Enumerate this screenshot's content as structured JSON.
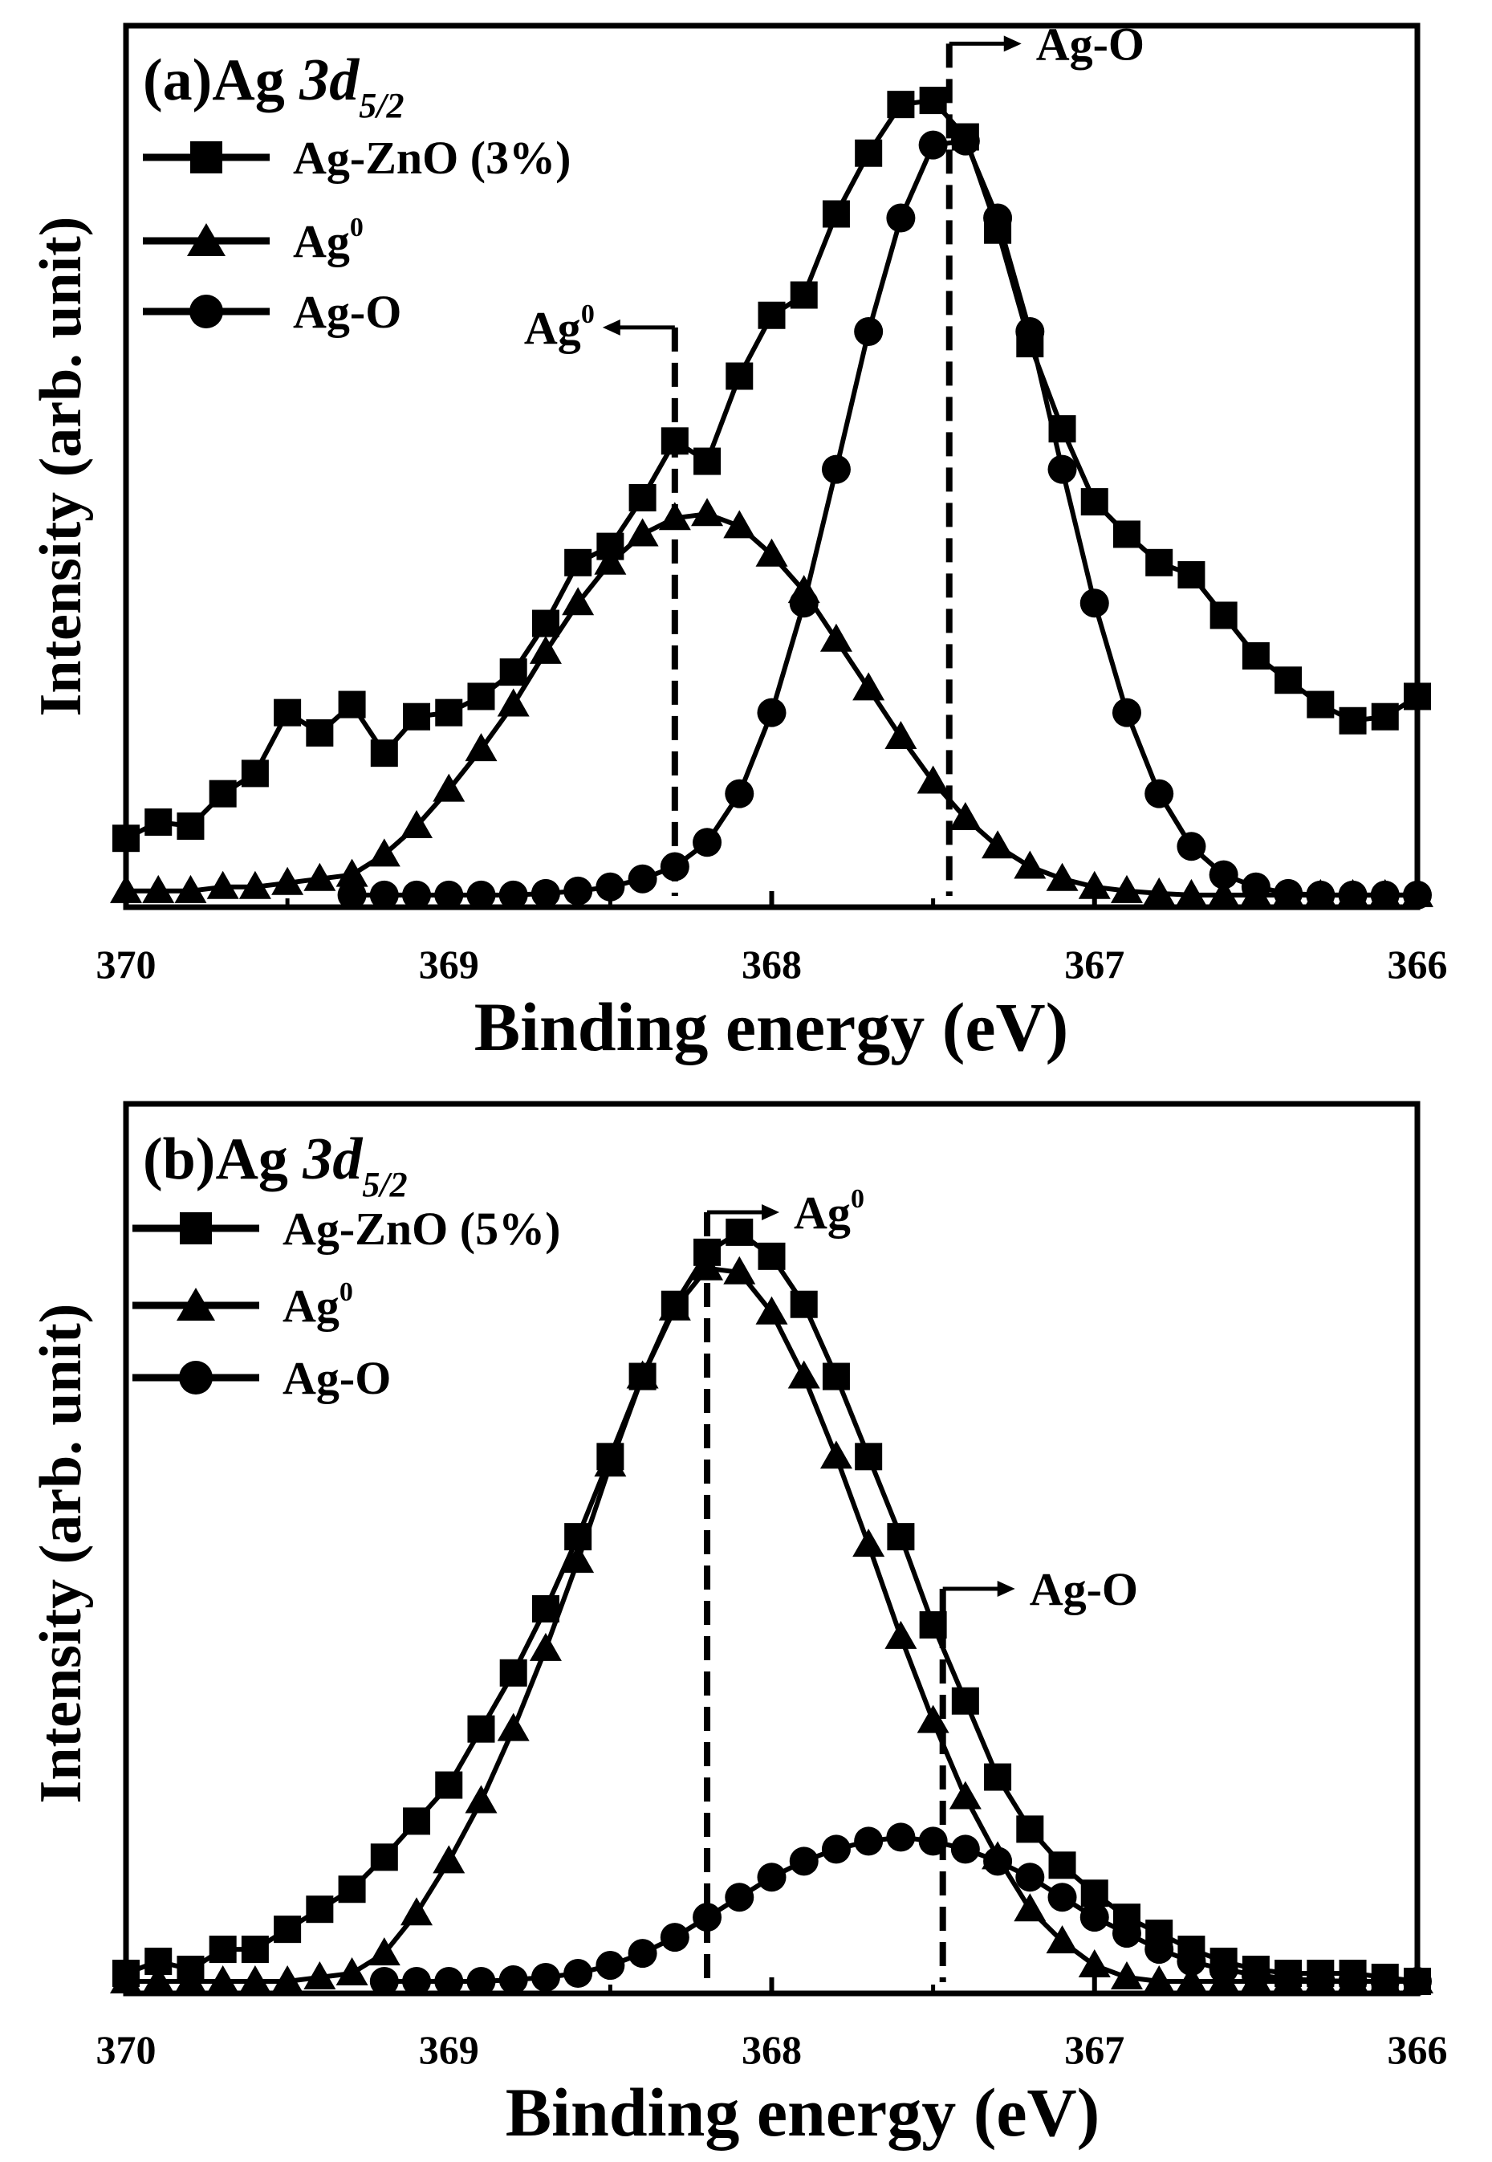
{
  "chart_data": [
    {
      "type": "line",
      "panel_label": "(a)",
      "title_prefix": "Ag ",
      "title_orbital": "3d",
      "title_subscript": "5/2",
      "xlabel": "Binding energy (eV)",
      "ylabel": "Intensity (arb. unit)",
      "xlim": [
        370,
        366
      ],
      "ylim": [
        0,
        1
      ],
      "x_ticks": [
        "370",
        "369",
        "368",
        "367",
        "366"
      ],
      "y_ticks_shown": false,
      "legend_placement": "top-left",
      "series": [
        {
          "name": "Ag-ZnO (3%)",
          "marker": "square",
          "points": [
            [
              370.0,
              0.08
            ],
            [
              369.9,
              0.1
            ],
            [
              369.8,
              0.095
            ],
            [
              369.7,
              0.135
            ],
            [
              369.6,
              0.16
            ],
            [
              369.5,
              0.235
            ],
            [
              369.4,
              0.21
            ],
            [
              369.3,
              0.245
            ],
            [
              369.2,
              0.185
            ],
            [
              369.1,
              0.23
            ],
            [
              369.0,
              0.235
            ],
            [
              368.9,
              0.255
            ],
            [
              368.8,
              0.285
            ],
            [
              368.7,
              0.345
            ],
            [
              368.6,
              0.42
            ],
            [
              368.5,
              0.44
            ],
            [
              368.4,
              0.5
            ],
            [
              368.3,
              0.57
            ],
            [
              368.2,
              0.545
            ],
            [
              368.1,
              0.65
            ],
            [
              368.0,
              0.725
            ],
            [
              367.9,
              0.75
            ],
            [
              367.8,
              0.85
            ],
            [
              367.7,
              0.925
            ],
            [
              367.6,
              0.985
            ],
            [
              367.5,
              0.99
            ],
            [
              367.4,
              0.945
            ],
            [
              367.3,
              0.83
            ],
            [
              367.2,
              0.69
            ],
            [
              367.1,
              0.585
            ],
            [
              367.0,
              0.495
            ],
            [
              366.9,
              0.455
            ],
            [
              366.8,
              0.42
            ],
            [
              366.7,
              0.405
            ],
            [
              366.6,
              0.355
            ],
            [
              366.5,
              0.305
            ],
            [
              366.4,
              0.275
            ],
            [
              366.3,
              0.245
            ],
            [
              366.2,
              0.225
            ],
            [
              366.1,
              0.23
            ],
            [
              366.0,
              0.255
            ]
          ]
        },
        {
          "name": "Ag⁰",
          "marker": "triangle",
          "points": [
            [
              370.0,
              0.015
            ],
            [
              369.9,
              0.015
            ],
            [
              369.8,
              0.015
            ],
            [
              369.7,
              0.02
            ],
            [
              369.6,
              0.02
            ],
            [
              369.5,
              0.025
            ],
            [
              369.4,
              0.03
            ],
            [
              369.3,
              0.035
            ],
            [
              369.2,
              0.06
            ],
            [
              369.1,
              0.095
            ],
            [
              369.0,
              0.14
            ],
            [
              368.9,
              0.19
            ],
            [
              368.8,
              0.245
            ],
            [
              368.7,
              0.31
            ],
            [
              368.6,
              0.37
            ],
            [
              368.5,
              0.42
            ],
            [
              368.4,
              0.455
            ],
            [
              368.3,
              0.475
            ],
            [
              368.2,
              0.48
            ],
            [
              368.1,
              0.465
            ],
            [
              368.0,
              0.43
            ],
            [
              367.9,
              0.385
            ],
            [
              367.8,
              0.325
            ],
            [
              367.7,
              0.265
            ],
            [
              367.6,
              0.205
            ],
            [
              367.5,
              0.15
            ],
            [
              367.4,
              0.105
            ],
            [
              367.3,
              0.07
            ],
            [
              367.2,
              0.045
            ],
            [
              367.1,
              0.03
            ],
            [
              367.0,
              0.02
            ],
            [
              366.9,
              0.015
            ],
            [
              366.8,
              0.012
            ],
            [
              366.7,
              0.01
            ],
            [
              366.6,
              0.01
            ],
            [
              366.5,
              0.01
            ],
            [
              366.4,
              0.01
            ],
            [
              366.3,
              0.01
            ],
            [
              366.2,
              0.01
            ],
            [
              366.1,
              0.01
            ],
            [
              366.0,
              0.01
            ]
          ]
        },
        {
          "name": "Ag-O",
          "marker": "circle",
          "points": [
            [
              369.3,
              0.01
            ],
            [
              369.2,
              0.01
            ],
            [
              369.1,
              0.01
            ],
            [
              369.0,
              0.01
            ],
            [
              368.9,
              0.01
            ],
            [
              368.8,
              0.01
            ],
            [
              368.7,
              0.012
            ],
            [
              368.6,
              0.015
            ],
            [
              368.5,
              0.02
            ],
            [
              368.4,
              0.03
            ],
            [
              368.3,
              0.045
            ],
            [
              368.2,
              0.075
            ],
            [
              368.1,
              0.135
            ],
            [
              368.0,
              0.235
            ],
            [
              367.9,
              0.37
            ],
            [
              367.8,
              0.535
            ],
            [
              367.7,
              0.705
            ],
            [
              367.6,
              0.845
            ],
            [
              367.5,
              0.935
            ],
            [
              367.4,
              0.94
            ],
            [
              367.3,
              0.845
            ],
            [
              367.2,
              0.705
            ],
            [
              367.1,
              0.535
            ],
            [
              367.0,
              0.37
            ],
            [
              366.9,
              0.235
            ],
            [
              366.8,
              0.135
            ],
            [
              366.7,
              0.07
            ],
            [
              366.6,
              0.035
            ],
            [
              366.5,
              0.02
            ],
            [
              366.4,
              0.012
            ],
            [
              366.3,
              0.01
            ],
            [
              366.2,
              0.01
            ],
            [
              366.1,
              0.01
            ],
            [
              366.0,
              0.01
            ]
          ]
        }
      ],
      "reference_lines": [
        {
          "x": 368.3,
          "label": "Ag",
          "label_sup": "0",
          "arrow": "left",
          "y_top": 0.71
        },
        {
          "x": 367.45,
          "label": "Ag-O",
          "label_sup": "",
          "arrow": "right",
          "y_top": 1.06
        }
      ]
    },
    {
      "type": "line",
      "panel_label": "(b)",
      "title_prefix": "Ag ",
      "title_orbital": "3d",
      "title_subscript": "5/2",
      "xlabel": "Binding energy (eV)",
      "ylabel": "Intensity (arb. unit)",
      "xlim": [
        370,
        366
      ],
      "ylim": [
        0,
        1
      ],
      "x_ticks": [
        "370",
        "369",
        "368",
        "367",
        "366"
      ],
      "y_ticks_shown": false,
      "legend_placement": "top-left",
      "series": [
        {
          "name": "Ag-ZnO (5%)",
          "marker": "square",
          "points": [
            [
              370.0,
              0.02
            ],
            [
              369.9,
              0.035
            ],
            [
              369.8,
              0.025
            ],
            [
              369.7,
              0.05
            ],
            [
              369.6,
              0.05
            ],
            [
              369.5,
              0.075
            ],
            [
              369.4,
              0.1
            ],
            [
              369.3,
              0.125
            ],
            [
              369.2,
              0.165
            ],
            [
              369.1,
              0.21
            ],
            [
              369.0,
              0.255
            ],
            [
              368.9,
              0.325
            ],
            [
              368.8,
              0.395
            ],
            [
              368.7,
              0.475
            ],
            [
              368.6,
              0.565
            ],
            [
              368.5,
              0.665
            ],
            [
              368.4,
              0.765
            ],
            [
              368.3,
              0.855
            ],
            [
              368.2,
              0.92
            ],
            [
              368.1,
              0.945
            ],
            [
              368.0,
              0.915
            ],
            [
              367.9,
              0.855
            ],
            [
              367.8,
              0.765
            ],
            [
              367.7,
              0.665
            ],
            [
              367.6,
              0.565
            ],
            [
              367.5,
              0.455
            ],
            [
              367.4,
              0.36
            ],
            [
              367.3,
              0.265
            ],
            [
              367.2,
              0.2
            ],
            [
              367.1,
              0.155
            ],
            [
              367.0,
              0.12
            ],
            [
              366.9,
              0.09
            ],
            [
              366.8,
              0.07
            ],
            [
              366.7,
              0.05
            ],
            [
              366.6,
              0.035
            ],
            [
              366.5,
              0.025
            ],
            [
              366.4,
              0.02
            ],
            [
              366.3,
              0.02
            ],
            [
              366.2,
              0.02
            ],
            [
              366.1,
              0.015
            ],
            [
              366.0,
              0.01
            ]
          ]
        },
        {
          "name": "Ag⁰",
          "marker": "triangle",
          "points": [
            [
              370.0,
              0.01
            ],
            [
              369.9,
              0.01
            ],
            [
              369.8,
              0.01
            ],
            [
              369.7,
              0.01
            ],
            [
              369.6,
              0.01
            ],
            [
              369.5,
              0.01
            ],
            [
              369.4,
              0.015
            ],
            [
              369.3,
              0.02
            ],
            [
              369.2,
              0.045
            ],
            [
              369.1,
              0.095
            ],
            [
              369.0,
              0.16
            ],
            [
              368.9,
              0.235
            ],
            [
              368.8,
              0.325
            ],
            [
              368.7,
              0.425
            ],
            [
              368.6,
              0.535
            ],
            [
              368.5,
              0.655
            ],
            [
              368.4,
              0.765
            ],
            [
              368.3,
              0.85
            ],
            [
              368.2,
              0.9
            ],
            [
              368.1,
              0.895
            ],
            [
              368.0,
              0.845
            ],
            [
              367.9,
              0.765
            ],
            [
              367.8,
              0.665
            ],
            [
              367.7,
              0.555
            ],
            [
              367.6,
              0.44
            ],
            [
              367.5,
              0.335
            ],
            [
              367.4,
              0.24
            ],
            [
              367.3,
              0.165
            ],
            [
              367.2,
              0.1
            ],
            [
              367.1,
              0.06
            ],
            [
              367.0,
              0.03
            ],
            [
              366.9,
              0.015
            ],
            [
              366.8,
              0.01
            ],
            [
              366.7,
              0.01
            ],
            [
              366.6,
              0.01
            ],
            [
              366.5,
              0.01
            ],
            [
              366.4,
              0.01
            ],
            [
              366.3,
              0.01
            ],
            [
              366.2,
              0.01
            ],
            [
              366.1,
              0.01
            ],
            [
              366.0,
              0.01
            ]
          ]
        },
        {
          "name": "Ag-O",
          "marker": "circle",
          "points": [
            [
              369.2,
              0.01
            ],
            [
              369.1,
              0.01
            ],
            [
              369.0,
              0.01
            ],
            [
              368.9,
              0.01
            ],
            [
              368.8,
              0.012
            ],
            [
              368.7,
              0.015
            ],
            [
              368.6,
              0.02
            ],
            [
              368.5,
              0.03
            ],
            [
              368.4,
              0.045
            ],
            [
              368.3,
              0.065
            ],
            [
              368.2,
              0.09
            ],
            [
              368.1,
              0.115
            ],
            [
              368.0,
              0.14
            ],
            [
              367.9,
              0.16
            ],
            [
              367.8,
              0.175
            ],
            [
              367.7,
              0.185
            ],
            [
              367.6,
              0.19
            ],
            [
              367.5,
              0.185
            ],
            [
              367.4,
              0.175
            ],
            [
              367.3,
              0.16
            ],
            [
              367.2,
              0.14
            ],
            [
              367.1,
              0.115
            ],
            [
              367.0,
              0.09
            ],
            [
              366.9,
              0.07
            ],
            [
              366.8,
              0.05
            ],
            [
              366.7,
              0.035
            ],
            [
              366.6,
              0.025
            ],
            [
              366.5,
              0.018
            ],
            [
              366.4,
              0.013
            ],
            [
              366.3,
              0.011
            ],
            [
              366.2,
              0.01
            ],
            [
              366.1,
              0.01
            ],
            [
              366.0,
              0.01
            ]
          ]
        }
      ],
      "reference_lines": [
        {
          "x": 368.2,
          "label": "Ag",
          "label_sup": "0",
          "arrow": "right",
          "y_top": 0.97
        },
        {
          "x": 367.47,
          "label": "Ag-O",
          "label_sup": "",
          "arrow": "right",
          "y_top": 0.5
        }
      ]
    }
  ]
}
